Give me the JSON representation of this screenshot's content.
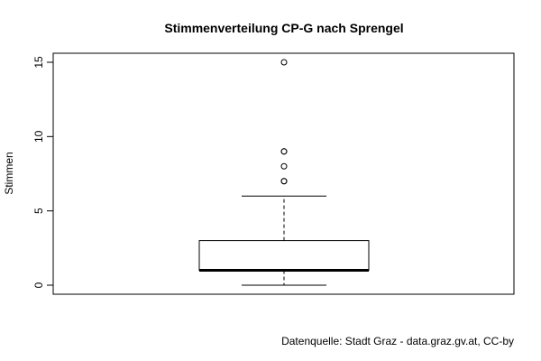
{
  "chart_data": {
    "type": "boxplot",
    "title": "Stimmenverteilung CP-G nach Sprengel",
    "ylabel": "Stimmen",
    "xlabel": "",
    "ylim": [
      0,
      15
    ],
    "yticks": [
      0,
      5,
      10,
      15
    ],
    "grid": false,
    "legend": "none",
    "box": {
      "whisker_low": 0,
      "q1": 1,
      "median": 1,
      "q3": 3,
      "whisker_high": 6
    },
    "outliers": [
      7,
      7,
      8,
      9,
      9,
      15
    ]
  },
  "footer": {
    "source": "Datenquelle: Stadt Graz - data.graz.gv.at, CC-by"
  },
  "colors": {
    "stroke": "#000000",
    "background": "#ffffff"
  }
}
